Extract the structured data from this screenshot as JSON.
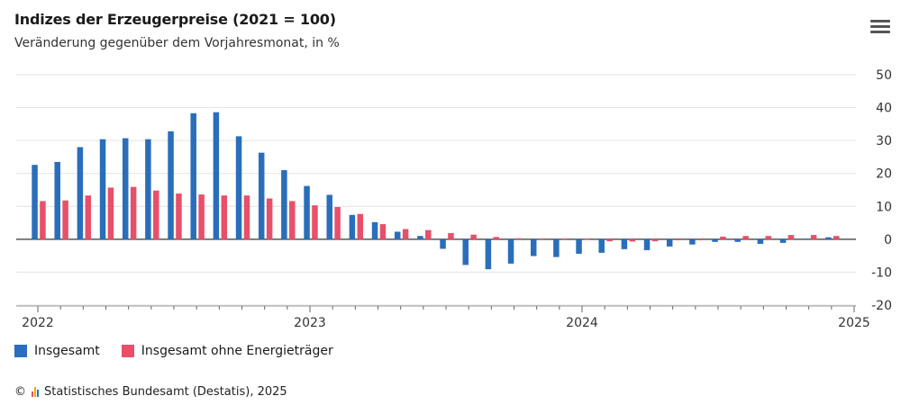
{
  "header": {
    "title": "Indizes der Erzeugerpreise (2021 = 100)",
    "subtitle": "Veränderung gegenüber dem Vorjahresmonat, in %"
  },
  "legend": {
    "series1": "Insgesamt",
    "series2": "Insgesamt ohne Energieträger"
  },
  "footer": {
    "copyright_symbol": "©",
    "source": "Statistisches Bundesamt (Destatis), 2025"
  },
  "colors": {
    "series1": "#2a6ebb",
    "series2": "#e8506a",
    "logo": [
      "#e8506a",
      "#f2a900",
      "#2a6ebb"
    ]
  },
  "icons": {
    "menu": "hamburger-menu-icon"
  },
  "chart_data": {
    "type": "bar",
    "x_ticks": [
      "2022",
      "2023",
      "2024",
      "2025"
    ],
    "y_ticks": [
      -20,
      -10,
      0,
      10,
      20,
      30,
      40,
      50
    ],
    "ylim": [
      -20,
      50
    ],
    "categories": [
      "2022-01",
      "2022-02",
      "2022-03",
      "2022-04",
      "2022-05",
      "2022-06",
      "2022-07",
      "2022-08",
      "2022-09",
      "2022-10",
      "2022-11",
      "2022-12",
      "2023-01",
      "2023-02",
      "2023-03",
      "2023-04",
      "2023-05",
      "2023-06",
      "2023-07",
      "2023-08",
      "2023-09",
      "2023-10",
      "2023-11",
      "2023-12",
      "2024-01",
      "2024-02",
      "2024-03",
      "2024-04",
      "2024-05",
      "2024-06",
      "2024-07",
      "2024-08",
      "2024-09",
      "2024-10",
      "2024-11",
      "2024-12"
    ],
    "series": [
      {
        "name": "Insgesamt",
        "values": [
          22.6,
          23.5,
          28.0,
          30.4,
          30.7,
          30.4,
          32.8,
          38.3,
          38.6,
          31.3,
          26.3,
          21.0,
          16.2,
          13.5,
          7.4,
          5.2,
          2.3,
          1.0,
          -2.9,
          -7.8,
          -9.1,
          -7.4,
          -5.1,
          -5.4,
          -4.4,
          -4.1,
          -3.0,
          -3.3,
          -2.2,
          -1.6,
          -0.8,
          -0.8,
          -1.4,
          -1.1,
          0.1,
          0.6
        ]
      },
      {
        "name": "Insgesamt ohne Energieträger",
        "values": [
          11.6,
          11.8,
          13.3,
          15.7,
          15.9,
          14.8,
          13.9,
          13.6,
          13.3,
          13.3,
          12.4,
          11.6,
          10.3,
          9.8,
          7.7,
          4.6,
          3.1,
          2.8,
          1.9,
          1.4,
          0.7,
          0.3,
          0.1,
          0.1,
          -0.2,
          -0.6,
          -0.7,
          -0.6,
          -0.3,
          -0.3,
          0.8,
          1.0,
          1.0,
          1.3,
          1.3,
          1.0
        ]
      }
    ],
    "grid": true,
    "legend_position": "bottom-left"
  }
}
